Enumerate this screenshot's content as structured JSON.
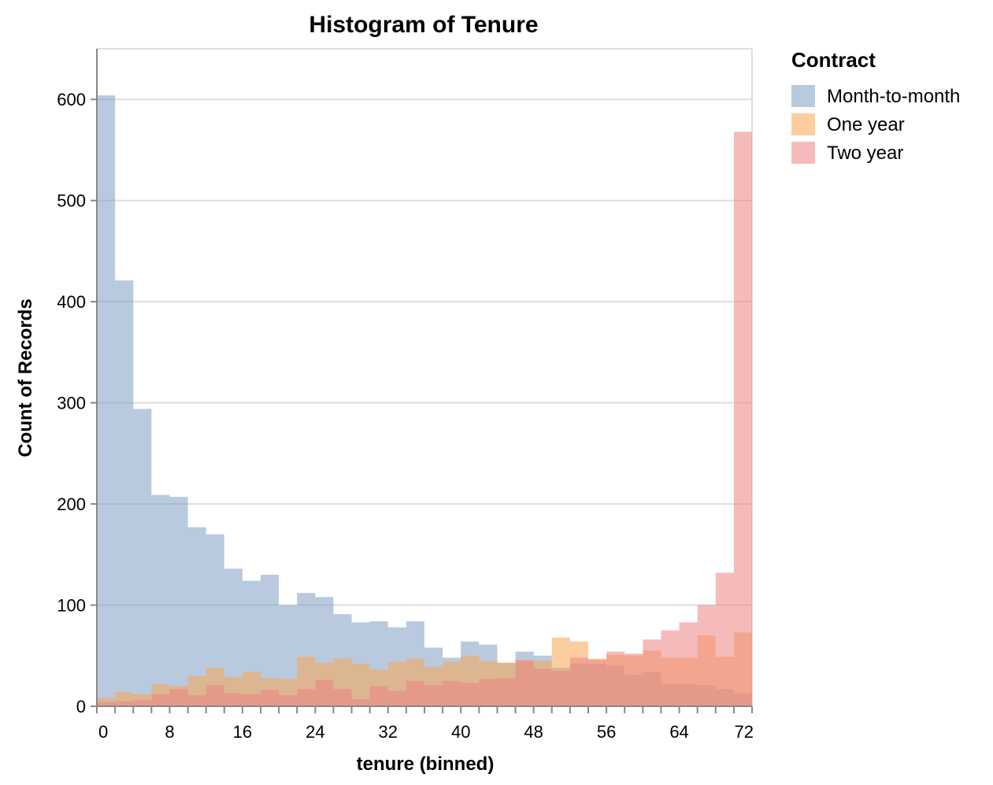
{
  "chart_data": {
    "type": "bar",
    "title": "Histogram of Tenure",
    "xlabel": "tenure (binned)",
    "ylabel": "Count of Records",
    "xlim": [
      0,
      72
    ],
    "ylim": [
      0,
      650
    ],
    "bin_width": 2,
    "bin_starts": [
      0,
      2,
      4,
      6,
      8,
      10,
      12,
      14,
      16,
      18,
      20,
      22,
      24,
      26,
      28,
      30,
      32,
      34,
      36,
      38,
      40,
      42,
      44,
      46,
      48,
      50,
      52,
      54,
      56,
      58,
      60,
      62,
      64,
      66,
      68,
      70
    ],
    "x_ticks": [
      0,
      8,
      16,
      24,
      32,
      40,
      48,
      56,
      64,
      72
    ],
    "y_ticks": [
      0,
      100,
      200,
      300,
      400,
      500,
      600
    ],
    "grid": true,
    "stacked": false,
    "opacity": 0.55,
    "legend": {
      "title": "Contract",
      "position": "top-right"
    },
    "series": [
      {
        "name": "Month-to-month",
        "color": "#7f9fc4",
        "values": [
          604,
          421,
          294,
          209,
          207,
          177,
          170,
          136,
          124,
          130,
          100,
          112,
          108,
          91,
          83,
          84,
          78,
          84,
          58,
          48,
          64,
          61,
          43,
          54,
          50,
          38,
          42,
          42,
          40,
          31,
          34,
          22,
          22,
          21,
          17,
          13
        ]
      },
      {
        "name": "One year",
        "color": "#f9a54e",
        "values": [
          8,
          14,
          12,
          22,
          20,
          30,
          38,
          29,
          34,
          28,
          27,
          49,
          43,
          47,
          42,
          36,
          44,
          47,
          39,
          44,
          50,
          45,
          43,
          46,
          45,
          68,
          64,
          47,
          51,
          50,
          55,
          48,
          48,
          70,
          49,
          73
        ]
      },
      {
        "name": "Two year",
        "color": "#ec8484",
        "values": [
          4,
          5,
          6,
          12,
          17,
          11,
          21,
          13,
          12,
          16,
          11,
          17,
          26,
          17,
          7,
          20,
          15,
          25,
          21,
          25,
          23,
          27,
          28,
          45,
          37,
          35,
          48,
          46,
          54,
          52,
          66,
          75,
          83,
          100,
          132,
          568
        ]
      }
    ]
  }
}
